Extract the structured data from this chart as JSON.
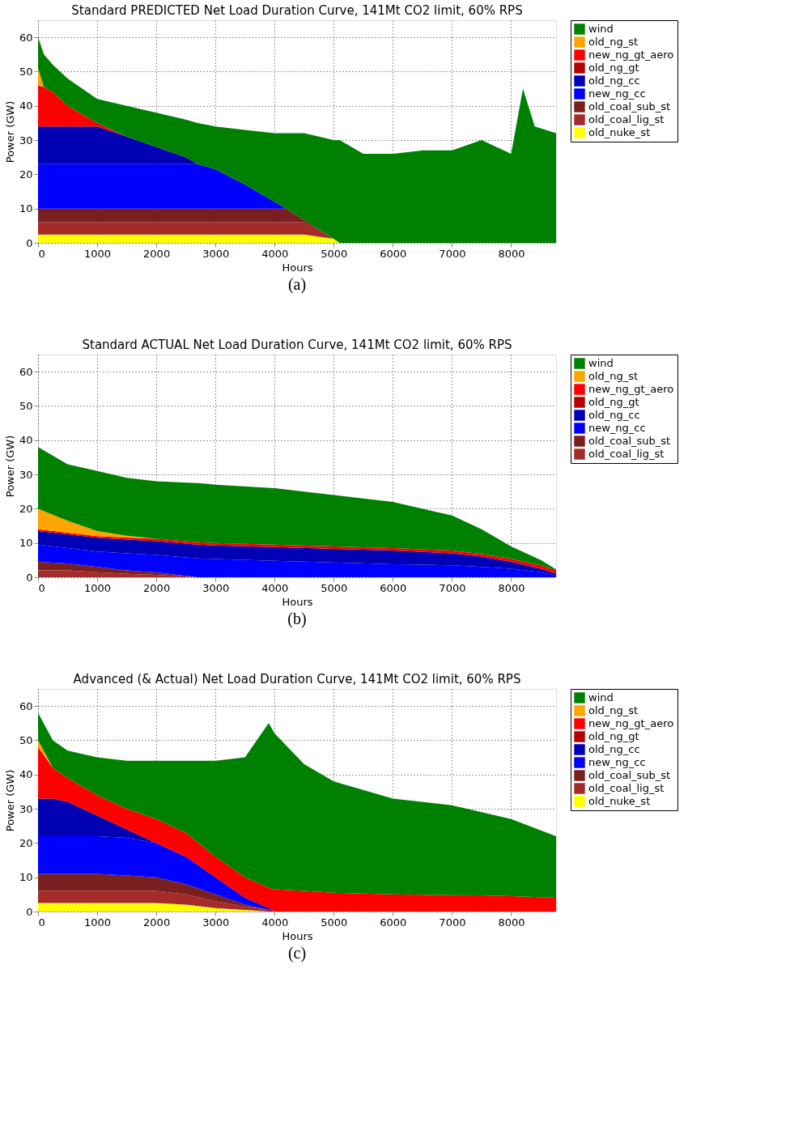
{
  "chart_data": [
    {
      "type": "area",
      "stacked": true,
      "title": "Standard PREDICTED Net Load Duration Curve, 141Mt CO2 limit, 60% RPS",
      "xlabel": "Hours",
      "ylabel": "Power (GW)",
      "annotations": [
        "(a)"
      ],
      "x": [
        0,
        100,
        250,
        500,
        1000,
        1500,
        2000,
        2500,
        2700,
        3000,
        3500,
        4000,
        4200,
        4500,
        5000,
        5100,
        5500,
        6000,
        6500,
        7000,
        7500,
        8000,
        8200,
        8400,
        8760
      ],
      "xlim": [
        0,
        8760
      ],
      "xticks": [
        0,
        1000,
        2000,
        3000,
        4000,
        5000,
        6000,
        7000,
        8000
      ],
      "ylim": [
        0,
        65
      ],
      "yticks": [
        0,
        10,
        20,
        30,
        40,
        50,
        60
      ],
      "grid": true,
      "legend": "right",
      "series": [
        {
          "name": "old_nuke_st",
          "color": "#ffff00",
          "values": [
            2.4,
            2.4,
            2.4,
            2.4,
            2.4,
            2.4,
            2.4,
            2.4,
            2.4,
            2.4,
            2.4,
            2.4,
            2.4,
            2.4,
            1.2,
            0,
            0,
            0,
            0,
            0,
            0,
            0,
            0,
            0,
            0
          ]
        },
        {
          "name": "old_coal_lig_st",
          "color": "#a52a2a",
          "values": [
            3.6,
            3.6,
            3.6,
            3.6,
            3.6,
            3.6,
            3.6,
            3.6,
            3.6,
            3.6,
            3.6,
            3.6,
            3.6,
            3.6,
            0,
            0,
            0,
            0,
            0,
            0,
            0,
            0,
            0,
            0,
            0
          ]
        },
        {
          "name": "old_coal_sub_st",
          "color": "#7a1f1f",
          "values": [
            4,
            4,
            4,
            4,
            4,
            4,
            4,
            4,
            4,
            4,
            4,
            4,
            4,
            0.7,
            0,
            0,
            0,
            0,
            0,
            0,
            0,
            0,
            0,
            0,
            0
          ]
        },
        {
          "name": "new_ng_cc",
          "color": "#0000ff",
          "values": [
            13,
            13,
            13,
            13,
            13,
            13,
            13,
            13,
            13,
            11.5,
            7,
            2,
            0,
            0,
            0,
            0,
            0,
            0,
            0,
            0,
            0,
            0,
            0,
            0,
            0
          ]
        },
        {
          "name": "old_ng_cc",
          "color": "#0000b4",
          "values": [
            11,
            11,
            11,
            11,
            11,
            8,
            5,
            2,
            0,
            0,
            0,
            0,
            0,
            0,
            0,
            0,
            0,
            0,
            0,
            0,
            0,
            0,
            0,
            0,
            0
          ]
        },
        {
          "name": "old_ng_gt",
          "color": "#b40000",
          "values": [
            null,
            null,
            null,
            null,
            null,
            null,
            null,
            null,
            null,
            null,
            null,
            null,
            null,
            null,
            null,
            null,
            null,
            null,
            null,
            null,
            null,
            null,
            null,
            null,
            null
          ]
        },
        {
          "name": "new_ng_gt_aero",
          "color": "#ff0000",
          "values": [
            12,
            11.5,
            10,
            6,
            1,
            0,
            0,
            0,
            0,
            0,
            0,
            0,
            0,
            0,
            0,
            0,
            0,
            0,
            0,
            0,
            0,
            0,
            0,
            0,
            0
          ]
        },
        {
          "name": "old_ng_st",
          "color": "#ffa500",
          "values": [
            5,
            0,
            0,
            0,
            0,
            0,
            0,
            0,
            0,
            0,
            0,
            0,
            0,
            0,
            0,
            0,
            0,
            0,
            0,
            0,
            0,
            0,
            0,
            0,
            0
          ]
        },
        {
          "name": "wind",
          "color": "#008000",
          "values": [
            9,
            9.5,
            8,
            8,
            7,
            9,
            10,
            11,
            12,
            12.5,
            16,
            20,
            22,
            25.3,
            28.8,
            30,
            26,
            26,
            27,
            27,
            30,
            26,
            45,
            34,
            32
          ]
        }
      ]
    },
    {
      "type": "area",
      "stacked": true,
      "title": "Standard ACTUAL Net Load Duration Curve, 141Mt CO2 limit, 60% RPS",
      "xlabel": "Hours",
      "ylabel": "Power (GW)",
      "annotations": [
        "(b)"
      ],
      "x": [
        0,
        500,
        1000,
        1500,
        2000,
        2700,
        3000,
        4000,
        5000,
        6000,
        7000,
        7500,
        8000,
        8500,
        8760
      ],
      "xlim": [
        0,
        8760
      ],
      "xticks": [
        0,
        1000,
        2000,
        3000,
        4000,
        5000,
        6000,
        7000,
        8000
      ],
      "ylim": [
        0,
        65
      ],
      "yticks": [
        0,
        10,
        20,
        30,
        40,
        50,
        60
      ],
      "grid": true,
      "legend": "right",
      "series": [
        {
          "name": "old_coal_lig_st",
          "color": "#a52a2a",
          "values": [
            2,
            2,
            1.5,
            1,
            0.7,
            0,
            0,
            0,
            0,
            0,
            0,
            0,
            0,
            0,
            0
          ]
        },
        {
          "name": "old_coal_sub_st",
          "color": "#7a1f1f",
          "values": [
            2.5,
            2,
            1.5,
            1,
            0.7,
            0,
            0,
            0,
            0,
            0,
            0,
            0,
            0,
            0,
            0
          ]
        },
        {
          "name": "new_ng_cc",
          "color": "#0000ff",
          "values": [
            5,
            4.5,
            4.5,
            5,
            5.1,
            5.5,
            5.3,
            4.8,
            4.3,
            3.8,
            3.5,
            3,
            2.5,
            1.5,
            0.5
          ]
        },
        {
          "name": "old_ng_cc",
          "color": "#0000b4",
          "values": [
            4,
            4,
            4,
            4,
            4,
            4,
            4,
            4,
            4,
            4,
            3.5,
            3,
            2,
            1,
            0.5
          ]
        },
        {
          "name": "old_ng_gt",
          "color": "#b40000",
          "values": [
            null,
            null,
            null,
            null,
            null,
            null,
            null,
            null,
            null,
            null,
            null,
            null,
            null,
            null,
            null
          ]
        },
        {
          "name": "new_ng_gt_aero",
          "color": "#ff0000",
          "values": [
            0.5,
            0.5,
            0.5,
            0.6,
            0.7,
            0.7,
            0.7,
            0.7,
            0.7,
            0.7,
            0.8,
            0.8,
            0.9,
            1,
            1
          ]
        },
        {
          "name": "old_ng_st",
          "color": "#ffa500",
          "values": [
            6,
            3.5,
            1.5,
            0.5,
            0,
            0,
            0,
            0,
            0,
            0,
            0,
            0,
            0,
            0,
            0
          ]
        },
        {
          "name": "wind",
          "color": "#008000",
          "values": [
            18,
            16.5,
            17.5,
            16.9,
            16.8,
            17.3,
            17,
            16.5,
            15,
            13.5,
            10.2,
            7.2,
            3.6,
            1.5,
            0.3
          ]
        }
      ]
    },
    {
      "type": "area",
      "stacked": true,
      "title": "Advanced (& Actual) Net Load Duration Curve, 141Mt CO2 limit, 60% RPS",
      "xlabel": "Hours",
      "ylabel": "Power (GW)",
      "annotations": [
        "(c)"
      ],
      "x": [
        0,
        250,
        500,
        1000,
        1500,
        2000,
        2500,
        3000,
        3500,
        3900,
        4000,
        4500,
        5000,
        6000,
        7000,
        7500,
        8000,
        8760
      ],
      "xlim": [
        0,
        8760
      ],
      "xticks": [
        0,
        1000,
        2000,
        3000,
        4000,
        5000,
        6000,
        7000,
        8000
      ],
      "ylim": [
        0,
        65
      ],
      "yticks": [
        0,
        10,
        20,
        30,
        40,
        50,
        60
      ],
      "grid": true,
      "legend": "right",
      "series": [
        {
          "name": "old_nuke_st",
          "color": "#ffff00",
          "values": [
            2.5,
            2.5,
            2.5,
            2.5,
            2.5,
            2.5,
            2,
            1,
            0.5,
            0,
            0,
            0,
            0,
            0,
            0,
            0,
            0,
            0
          ]
        },
        {
          "name": "old_coal_lig_st",
          "color": "#a52a2a",
          "values": [
            3.5,
            3.5,
            3.5,
            3.5,
            3.5,
            3.5,
            3,
            2,
            1,
            0.5,
            0,
            0,
            0,
            0,
            0,
            0,
            0,
            0
          ]
        },
        {
          "name": "old_coal_sub_st",
          "color": "#7a1f1f",
          "values": [
            5,
            5,
            5,
            5,
            4.5,
            4,
            3,
            2,
            0.5,
            0,
            0,
            0,
            0,
            0,
            0,
            0,
            0,
            0
          ]
        },
        {
          "name": "new_ng_cc",
          "color": "#0000ff",
          "values": [
            11,
            11,
            11,
            11,
            11,
            10,
            8,
            5,
            2,
            0.5,
            0,
            0,
            0,
            0,
            0,
            0,
            0,
            0
          ]
        },
        {
          "name": "old_ng_cc",
          "color": "#0000b4",
          "values": [
            11,
            11,
            10,
            6,
            2.5,
            0,
            0,
            0,
            0,
            0,
            0,
            0,
            0,
            0,
            0,
            0,
            0,
            0
          ]
        },
        {
          "name": "old_ng_gt",
          "color": "#b40000",
          "values": [
            null,
            null,
            null,
            null,
            null,
            null,
            null,
            null,
            null,
            null,
            null,
            null,
            null,
            null,
            null,
            null,
            null,
            null
          ]
        },
        {
          "name": "new_ng_gt_aero",
          "color": "#ff0000",
          "values": [
            15,
            9,
            7,
            6,
            6,
            7,
            7,
            6,
            6,
            6,
            6.5,
            6,
            5.5,
            5,
            4.8,
            4.7,
            4.5,
            4
          ]
        },
        {
          "name": "old_ng_st",
          "color": "#ffa500",
          "values": [
            2,
            0,
            0,
            0,
            0,
            0,
            0,
            0,
            0,
            0,
            0,
            0,
            0,
            0,
            0,
            0,
            0,
            0
          ]
        },
        {
          "name": "wind",
          "color": "#008000",
          "values": [
            8,
            8,
            8,
            11,
            14,
            17,
            21,
            28,
            35,
            48,
            45.5,
            37,
            32.5,
            28,
            26.2,
            24.3,
            22.5,
            18
          ]
        }
      ]
    }
  ]
}
